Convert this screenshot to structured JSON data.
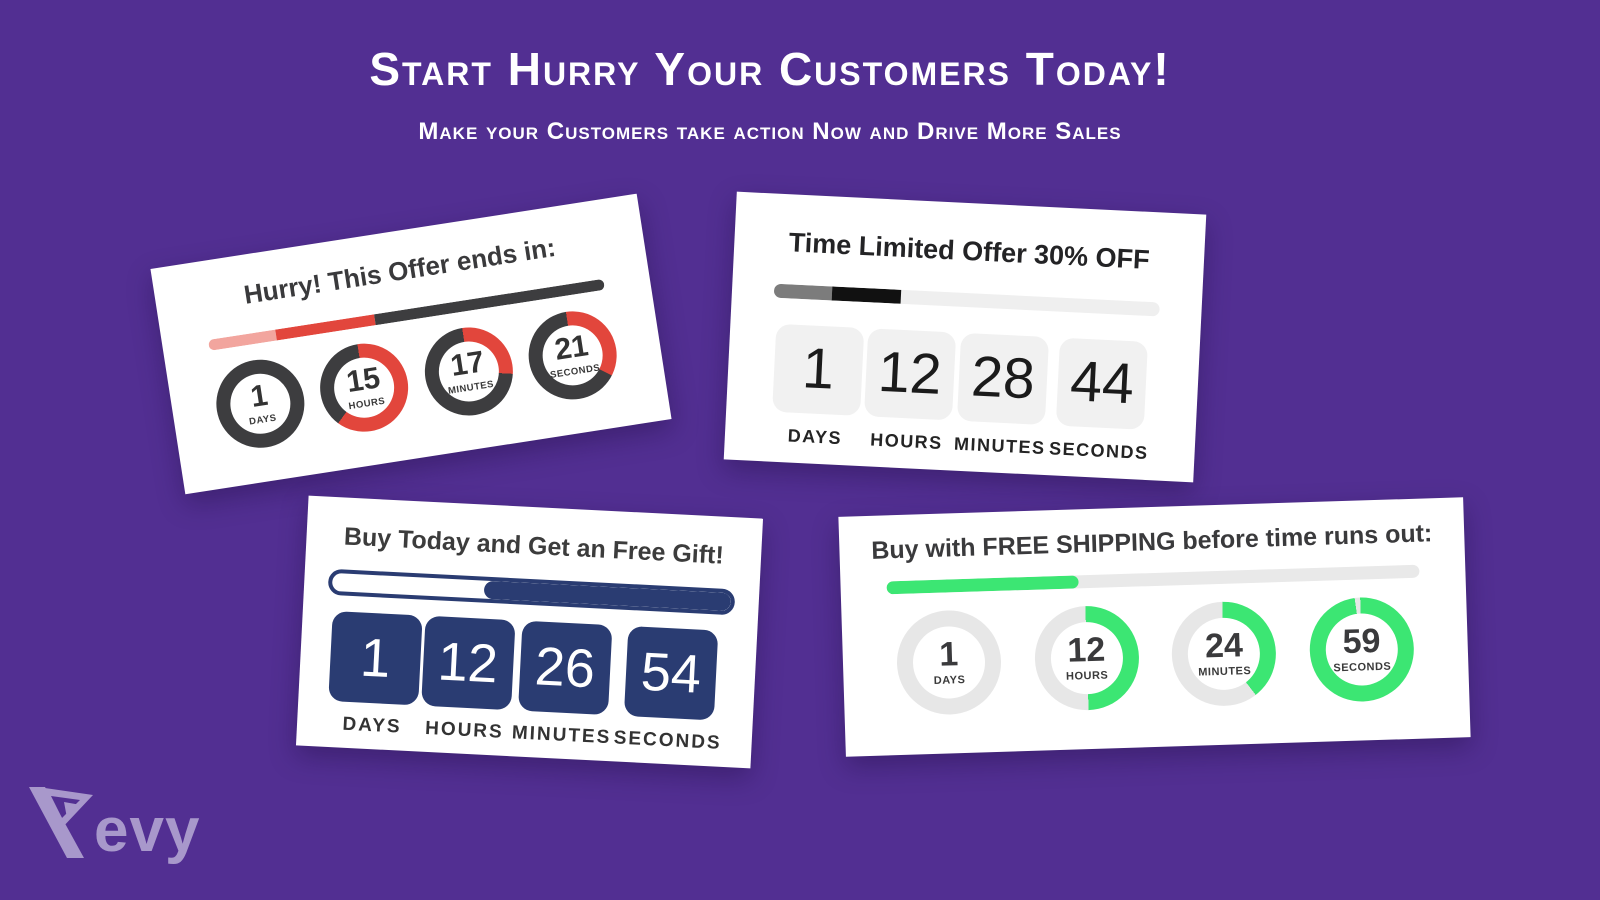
{
  "page": {
    "background_color": "#522f92",
    "headline": "Start Hurry Your Customers Today!",
    "subheadline": "Make your Customers take action Now and Drive More Sales",
    "logo": {
      "brand": "Kevy",
      "suffix": "evy",
      "color": "#b0a1d0"
    }
  },
  "cards": {
    "hurry": {
      "title": "Hurry! This Offer ends in:",
      "colors": {
        "fill": "#e2463c",
        "base": "#3d3d3f"
      },
      "bar_segments": [
        {
          "color": "#f2a59e",
          "width": 17
        },
        {
          "color": "#e2463c",
          "width": 25
        },
        {
          "color": "#3d3d3f",
          "width": 58
        }
      ],
      "units": [
        {
          "value": "1",
          "label": "DAYS",
          "percent": 0
        },
        {
          "value": "15",
          "label": "HOURS",
          "percent": 62.5
        },
        {
          "value": "17",
          "label": "MINUTES",
          "percent": 28.3
        },
        {
          "value": "21",
          "label": "SECONDS",
          "percent": 35
        }
      ]
    },
    "limited": {
      "title": "Time Limited Offer 30% OFF",
      "bar": {
        "track_color": "#efefef",
        "segments": [
          {
            "color": "#7c7c7c",
            "width": 15
          },
          {
            "color": "#111111",
            "width": 18
          }
        ]
      },
      "tile_color": "#f1f1f1",
      "units": [
        {
          "value": "1",
          "label": "DAYS"
        },
        {
          "value": "12",
          "label": "HOURS"
        },
        {
          "value": "28",
          "label": "MINUTES"
        },
        {
          "value": "44",
          "label": "SECONDS"
        }
      ]
    },
    "gift": {
      "title": "Buy Today and Get an Free Gift!",
      "accent_color": "#2a3c72",
      "bar": {
        "empty_width": 38
      },
      "units": [
        {
          "value": "1",
          "label": "DAYS"
        },
        {
          "value": "12",
          "label": "HOURS"
        },
        {
          "value": "26",
          "label": "MINUTES"
        },
        {
          "value": "54",
          "label": "SECONDS"
        }
      ]
    },
    "shipping": {
      "title": "Buy with FREE SHIPPING before time runs out:",
      "colors": {
        "fill": "#3ce673",
        "base": "#e7e7e7"
      },
      "bar": {
        "track_color": "#e9e9e9",
        "fill_width": 36
      },
      "units": [
        {
          "value": "1",
          "label": "DAYS",
          "percent": 0
        },
        {
          "value": "12",
          "label": "HOURS",
          "percent": 50
        },
        {
          "value": "24",
          "label": "MINUTES",
          "percent": 40
        },
        {
          "value": "59",
          "label": "SECONDS",
          "percent": 98.3
        }
      ]
    }
  }
}
